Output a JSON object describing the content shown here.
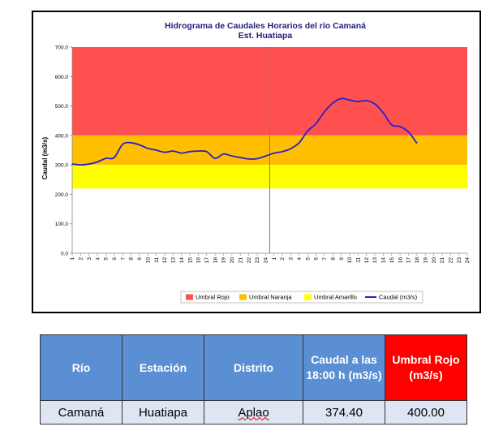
{
  "chart_data": {
    "type": "line",
    "title": "Hidrograma de Caudales Horarios del río Camaná",
    "subtitle": "Est. Huatiapa",
    "ylabel": "Caudal (m3/s)",
    "xlabel": "",
    "ylim": [
      0,
      700
    ],
    "yticks": [
      "0.0",
      "100.0",
      "200.0",
      "300.0",
      "400.0",
      "500.0",
      "600.0",
      "700.0"
    ],
    "xticks": [
      "1",
      "2",
      "3",
      "4",
      "5",
      "6",
      "7",
      "8",
      "9",
      "10",
      "11",
      "12",
      "13",
      "14",
      "15",
      "16",
      "17",
      "18",
      "19",
      "20",
      "21",
      "22",
      "23",
      "24",
      "1",
      "2",
      "3",
      "4",
      "5",
      "6",
      "7",
      "8",
      "9",
      "10",
      "11",
      "12",
      "13",
      "14",
      "15",
      "16",
      "17",
      "18",
      "19",
      "20",
      "21",
      "22",
      "23",
      "24"
    ],
    "bands": [
      {
        "name": "Umbral Rojo",
        "from": 400,
        "to": 700,
        "color": "#ff5050"
      },
      {
        "name": "Umbral Naranja",
        "from": 300,
        "to": 400,
        "color": "#ffbf00"
      },
      {
        "name": "Umbral Amarillo",
        "from": 220,
        "to": 300,
        "color": "#ffff00"
      }
    ],
    "series": [
      {
        "name": "Caudal (m3/s)",
        "color": "#2222cc",
        "x": [
          1,
          2,
          3,
          4,
          5,
          6,
          7,
          8,
          9,
          10,
          11,
          12,
          13,
          14,
          15,
          16,
          17,
          18,
          19,
          20,
          21,
          22,
          23,
          24,
          25,
          26,
          27,
          28,
          29,
          30,
          31,
          32,
          33,
          34,
          35,
          36,
          37,
          38,
          39,
          40,
          41,
          42
        ],
        "values": [
          303,
          300,
          303,
          310,
          322,
          325,
          370,
          375,
          368,
          356,
          350,
          343,
          347,
          340,
          345,
          347,
          345,
          322,
          337,
          330,
          325,
          320,
          321,
          330,
          340,
          345,
          355,
          375,
          415,
          440,
          480,
          510,
          525,
          520,
          515,
          518,
          507,
          477,
          436,
          430,
          412,
          374
        ]
      }
    ],
    "divider_after_x": 24.5
  },
  "legend": {
    "items": [
      {
        "label": "Umbral Rojo",
        "color": "#ff5050",
        "kind": "box"
      },
      {
        "label": "Umbral Naranja",
        "color": "#ffbf00",
        "kind": "box"
      },
      {
        "label": "Umbral Amarillo",
        "color": "#ffff00",
        "kind": "box"
      },
      {
        "label": "Caudal (m3/s)",
        "color": "#2222cc",
        "kind": "line"
      }
    ]
  },
  "table": {
    "headers": [
      "Río",
      "Estación",
      "Distrito",
      "Caudal a las 18:00 h (m3/s)",
      "Umbral Rojo (m3/s)"
    ],
    "row": [
      "Camaná",
      "Huatiapa",
      "Aplao",
      "374.40",
      "400.00"
    ]
  }
}
